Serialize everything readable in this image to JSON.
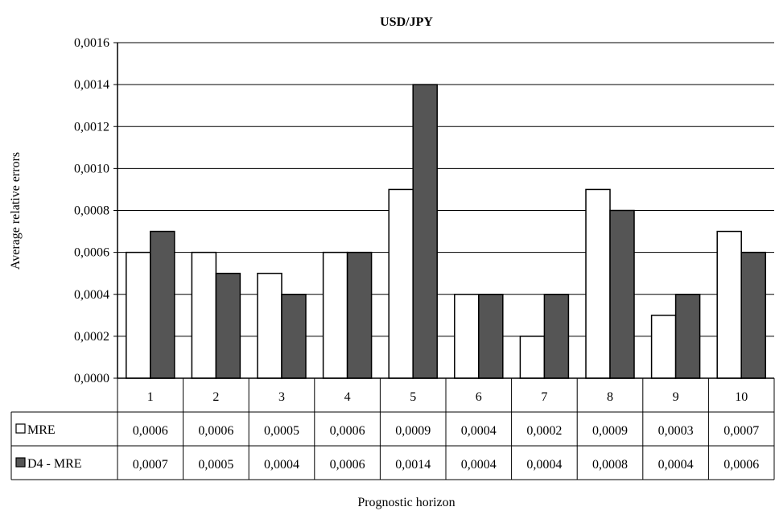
{
  "chart_data": {
    "type": "bar",
    "title": "USD/JPY",
    "xlabel": "Prognostic horizon",
    "ylabel": "Average relative errors",
    "categories": [
      "1",
      "2",
      "3",
      "4",
      "5",
      "6",
      "7",
      "8",
      "9",
      "10"
    ],
    "series": [
      {
        "name": "MRE",
        "values": [
          0.0006,
          0.0006,
          0.0005,
          0.0006,
          0.0009,
          0.0004,
          0.0002,
          0.0009,
          0.0003,
          0.0007
        ],
        "labels": [
          "0,0006",
          "0,0006",
          "0,0005",
          "0,0006",
          "0,0009",
          "0,0004",
          "0,0002",
          "0,0009",
          "0,0003",
          "0,0007"
        ],
        "color": "#ffffff"
      },
      {
        "name": "D4 - MRE",
        "values": [
          0.0007,
          0.0005,
          0.0004,
          0.0006,
          0.0014,
          0.0004,
          0.0004,
          0.0008,
          0.0004,
          0.0006
        ],
        "labels": [
          "0,0007",
          "0,0005",
          "0,0004",
          "0,0006",
          "0,0014",
          "0,0004",
          "0,0004",
          "0,0008",
          "0,0004",
          "0,0006"
        ],
        "color": "#555555"
      }
    ],
    "ylim": [
      0,
      0.0016
    ],
    "yticks": [
      0,
      0.0002,
      0.0004,
      0.0006,
      0.0008,
      0.001,
      0.0012,
      0.0014,
      0.0016
    ],
    "ytick_labels": [
      "0,0000",
      "0,0002",
      "0,0004",
      "0,0006",
      "0,0008",
      "0,0010",
      "0,0012",
      "0,0014",
      "0,0016"
    ],
    "grid": true,
    "legend": "data-table"
  }
}
